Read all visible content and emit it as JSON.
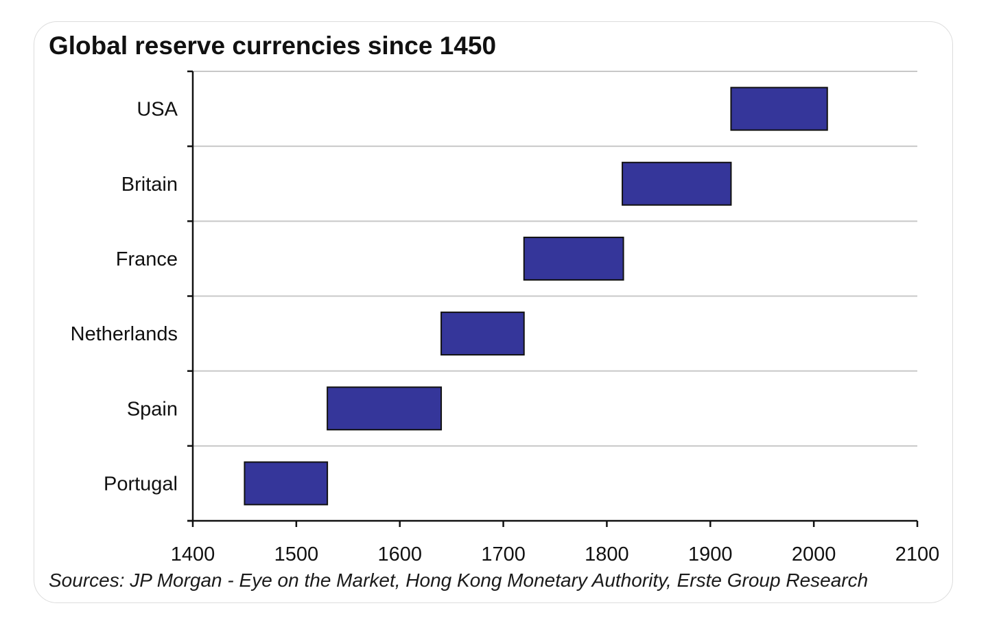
{
  "title": "Global reserve currencies since 1450",
  "source": "Sources: JP Morgan - Eye on the Market, Hong Kong Monetary Authority, Erste Group Research",
  "colors": {
    "bar_fill": "#35369a",
    "bar_stroke": "#111111",
    "grid": "#c8c8c8",
    "axis": "#111111"
  },
  "chart_data": {
    "type": "bar",
    "orientation": "horizontal-range",
    "title": "Global reserve currencies since 1450",
    "xlabel": "",
    "ylabel": "",
    "xlim": [
      1400,
      2100
    ],
    "xticks": [
      1400,
      1500,
      1600,
      1700,
      1800,
      1900,
      2000,
      2100
    ],
    "grid": true,
    "categories": [
      "USA",
      "Britain",
      "France",
      "Netherlands",
      "Spain",
      "Portugal"
    ],
    "ranges": [
      {
        "category": "USA",
        "start": 1920,
        "end": 2013
      },
      {
        "category": "Britain",
        "start": 1815,
        "end": 1920
      },
      {
        "category": "France",
        "start": 1720,
        "end": 1816
      },
      {
        "category": "Netherlands",
        "start": 1640,
        "end": 1720
      },
      {
        "category": "Spain",
        "start": 1530,
        "end": 1640
      },
      {
        "category": "Portugal",
        "start": 1450,
        "end": 1530
      }
    ]
  }
}
